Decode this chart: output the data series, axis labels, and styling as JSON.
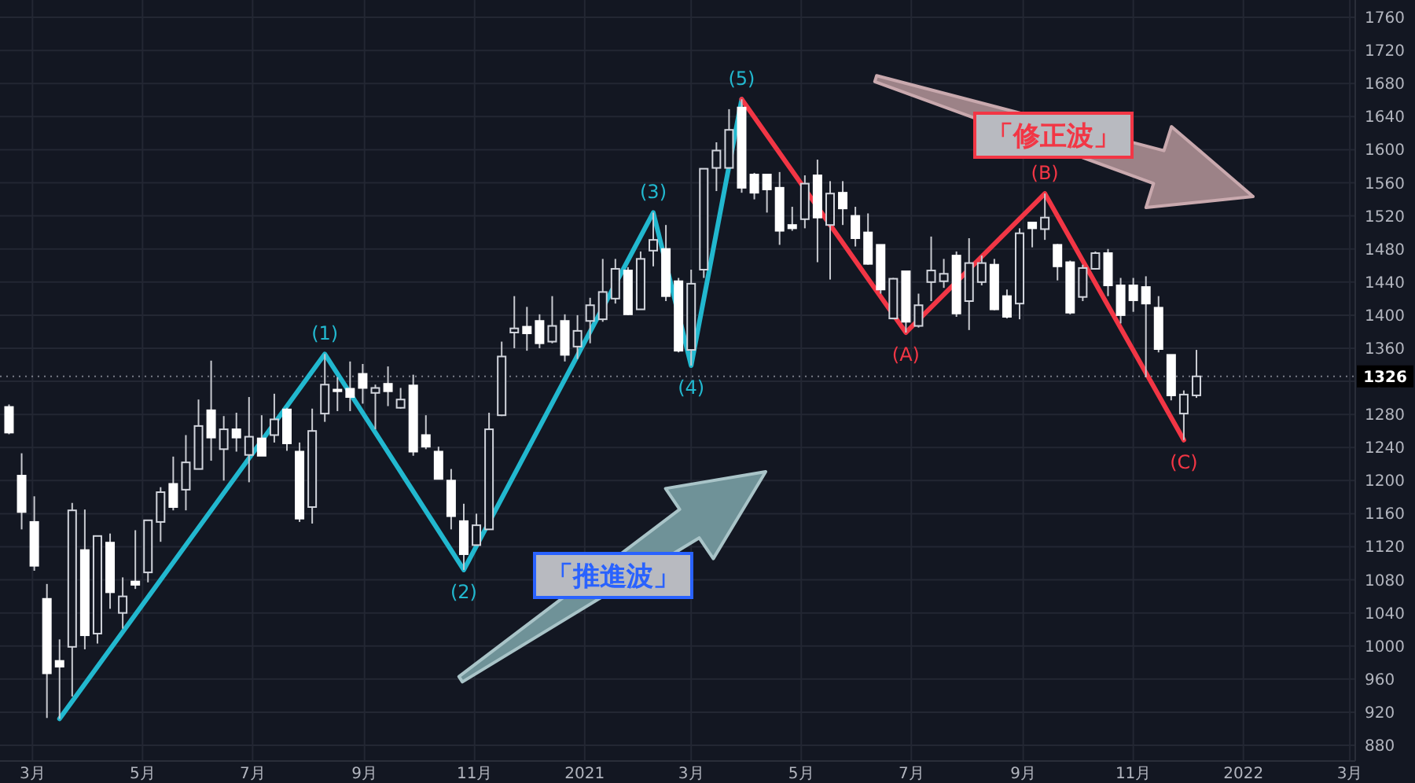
{
  "chart_data": {
    "type": "candlestick",
    "x": [
      "2020-02-17",
      "2020-02-24",
      "2020-03-02",
      "2020-03-09",
      "2020-03-16",
      "2020-03-23",
      "2020-03-30",
      "2020-04-06",
      "2020-04-13",
      "2020-04-20",
      "2020-04-27",
      "2020-05-04",
      "2020-05-11",
      "2020-05-18",
      "2020-05-25",
      "2020-06-01",
      "2020-06-08",
      "2020-06-15",
      "2020-06-22",
      "2020-06-29",
      "2020-07-06",
      "2020-07-13",
      "2020-07-20",
      "2020-07-27",
      "2020-08-03",
      "2020-08-10",
      "2020-08-17",
      "2020-08-24",
      "2020-08-31",
      "2020-09-07",
      "2020-09-14",
      "2020-09-21",
      "2020-09-28",
      "2020-10-05",
      "2020-10-12",
      "2020-10-19",
      "2020-10-26",
      "2020-11-02",
      "2020-11-09",
      "2020-11-16",
      "2020-11-23",
      "2020-11-30",
      "2020-12-07",
      "2020-12-14",
      "2020-12-21",
      "2020-12-28",
      "2021-01-04",
      "2021-01-11",
      "2021-01-18",
      "2021-01-25",
      "2021-02-01",
      "2021-02-08",
      "2021-02-15",
      "2021-02-22",
      "2021-03-01",
      "2021-03-08",
      "2021-03-15",
      "2021-03-22",
      "2021-03-29",
      "2021-04-05",
      "2021-04-12",
      "2021-04-19",
      "2021-04-26",
      "2021-05-03",
      "2021-05-10",
      "2021-05-17",
      "2021-05-24",
      "2021-05-31",
      "2021-06-07",
      "2021-06-14",
      "2021-06-21",
      "2021-06-28",
      "2021-07-05",
      "2021-07-12",
      "2021-07-19",
      "2021-07-26",
      "2021-08-02",
      "2021-08-09",
      "2021-08-16",
      "2021-08-23",
      "2021-08-30",
      "2021-09-06",
      "2021-09-13",
      "2021-09-20",
      "2021-09-27",
      "2021-10-04",
      "2021-10-11",
      "2021-10-18",
      "2021-10-25",
      "2021-11-01",
      "2021-11-08",
      "2021-11-15",
      "2021-11-22",
      "2021-11-29",
      "2021-12-06"
    ],
    "ohlc": [
      [
        1289,
        1292,
        1256,
        1258
      ],
      [
        1206,
        1233,
        1141,
        1162
      ],
      [
        1150,
        1181,
        1091,
        1097
      ],
      [
        1057,
        1075,
        913,
        967
      ],
      [
        982,
        1008,
        912,
        975
      ],
      [
        999,
        1173,
        939,
        1164
      ],
      [
        1116,
        1165,
        996,
        1013
      ],
      [
        1015,
        1133,
        1003,
        1133
      ],
      [
        1125,
        1136,
        1045,
        1065
      ],
      [
        1040,
        1083,
        1021,
        1060
      ],
      [
        1078,
        1140,
        1069,
        1074
      ],
      [
        1089,
        1152,
        1077,
        1152
      ],
      [
        1150,
        1192,
        1126,
        1186
      ],
      [
        1196,
        1229,
        1164,
        1168
      ],
      [
        1189,
        1255,
        1164,
        1222
      ],
      [
        1214,
        1298,
        1214,
        1266
      ],
      [
        1285,
        1345,
        1224,
        1252
      ],
      [
        1238,
        1278,
        1200,
        1262
      ],
      [
        1262,
        1282,
        1235,
        1252
      ],
      [
        1231,
        1301,
        1198,
        1253
      ],
      [
        1251,
        1279,
        1230,
        1230
      ],
      [
        1255,
        1305,
        1246,
        1274
      ],
      [
        1286,
        1288,
        1236,
        1245
      ],
      [
        1235,
        1246,
        1150,
        1154
      ],
      [
        1168,
        1287,
        1148,
        1260
      ],
      [
        1281,
        1353,
        1271,
        1316
      ],
      [
        1310,
        1325,
        1284,
        1308
      ],
      [
        1311,
        1344,
        1284,
        1301
      ],
      [
        1329,
        1341,
        1293,
        1312
      ],
      [
        1306,
        1316,
        1262,
        1312
      ],
      [
        1317,
        1338,
        1290,
        1308
      ],
      [
        1288,
        1312,
        1287,
        1298
      ],
      [
        1315,
        1328,
        1230,
        1235
      ],
      [
        1255,
        1279,
        1238,
        1241
      ],
      [
        1235,
        1241,
        1202,
        1202
      ],
      [
        1200,
        1214,
        1141,
        1157
      ],
      [
        1151,
        1172,
        1092,
        1111
      ],
      [
        1122,
        1160,
        1122,
        1146
      ],
      [
        1141,
        1282,
        1141,
        1262
      ],
      [
        1279,
        1368,
        1278,
        1350
      ],
      [
        1379,
        1423,
        1360,
        1384
      ],
      [
        1386,
        1410,
        1357,
        1378
      ],
      [
        1393,
        1401,
        1360,
        1366
      ],
      [
        1368,
        1423,
        1366,
        1387
      ],
      [
        1393,
        1401,
        1344,
        1352
      ],
      [
        1362,
        1400,
        1347,
        1381
      ],
      [
        1393,
        1421,
        1366,
        1412
      ],
      [
        1395,
        1468,
        1392,
        1428
      ],
      [
        1420,
        1468,
        1414,
        1456
      ],
      [
        1454,
        1458,
        1400,
        1401
      ],
      [
        1407,
        1477,
        1407,
        1468
      ],
      [
        1478,
        1524,
        1459,
        1491
      ],
      [
        1480,
        1509,
        1417,
        1423
      ],
      [
        1441,
        1445,
        1355,
        1357
      ],
      [
        1358,
        1455,
        1339,
        1438
      ],
      [
        1455,
        1577,
        1445,
        1577
      ],
      [
        1578,
        1609,
        1550,
        1599
      ],
      [
        1578,
        1649,
        1578,
        1624
      ],
      [
        1651,
        1661,
        1548,
        1554
      ],
      [
        1570,
        1572,
        1540,
        1548
      ],
      [
        1570,
        1570,
        1524,
        1552
      ],
      [
        1554,
        1573,
        1485,
        1502
      ],
      [
        1509,
        1531,
        1502,
        1505
      ],
      [
        1516,
        1569,
        1505,
        1559
      ],
      [
        1569,
        1588,
        1464,
        1518
      ],
      [
        1509,
        1562,
        1443,
        1547
      ],
      [
        1548,
        1562,
        1509,
        1529
      ],
      [
        1520,
        1531,
        1483,
        1493
      ],
      [
        1500,
        1523,
        1461,
        1462
      ],
      [
        1485,
        1485,
        1426,
        1431
      ],
      [
        1396,
        1445,
        1395,
        1444
      ],
      [
        1453,
        1453,
        1379,
        1392
      ],
      [
        1387,
        1426,
        1385,
        1412
      ],
      [
        1440,
        1495,
        1417,
        1454
      ],
      [
        1441,
        1468,
        1433,
        1450
      ],
      [
        1472,
        1477,
        1398,
        1402
      ],
      [
        1417,
        1493,
        1382,
        1463
      ],
      [
        1440,
        1472,
        1436,
        1463
      ],
      [
        1461,
        1468,
        1406,
        1407
      ],
      [
        1423,
        1431,
        1396,
        1398
      ],
      [
        1414,
        1505,
        1395,
        1499
      ],
      [
        1512,
        1512,
        1482,
        1505
      ],
      [
        1504,
        1547,
        1491,
        1518
      ],
      [
        1485,
        1486,
        1442,
        1459
      ],
      [
        1464,
        1466,
        1401,
        1403
      ],
      [
        1422,
        1461,
        1417,
        1457
      ],
      [
        1456,
        1477,
        1455,
        1475
      ],
      [
        1475,
        1480,
        1423,
        1436
      ],
      [
        1436,
        1445,
        1390,
        1400
      ],
      [
        1436,
        1445,
        1404,
        1418
      ],
      [
        1434,
        1447,
        1325,
        1414
      ],
      [
        1409,
        1423,
        1355,
        1359
      ],
      [
        1352,
        1352,
        1297,
        1303
      ],
      [
        1281,
        1309,
        1249,
        1304
      ],
      [
        1303,
        1358,
        1300,
        1326
      ]
    ],
    "series": [
      {
        "type": "line",
        "color": "#22b8cf",
        "x": [
          "2020-03-16",
          "2020-08-10",
          "2020-10-26",
          "2021-02-08",
          "2021-03-01",
          "2021-03-29"
        ],
        "values": [
          912,
          1353,
          1092,
          1524,
          1339,
          1661
        ]
      },
      {
        "type": "line",
        "color": "#f23645",
        "x": [
          "2021-03-29",
          "2021-06-28",
          "2021-09-13",
          "2021-11-29"
        ],
        "values": [
          1661,
          1379,
          1547,
          1249
        ]
      }
    ],
    "xlim": [
      "2020-02-12",
      "2022-03-04"
    ],
    "ylim": [
      861,
      1781
    ],
    "xticks": [
      {
        "value": "2020-03-01",
        "label": "3月"
      },
      {
        "value": "2020-05-01",
        "label": "5月"
      },
      {
        "value": "2020-07-01",
        "label": "7月"
      },
      {
        "value": "2020-09-01",
        "label": "9月"
      },
      {
        "value": "2020-11-01",
        "label": "11月"
      },
      {
        "value": "2021-01-01",
        "label": "2021"
      },
      {
        "value": "2021-03-01",
        "label": "3月"
      },
      {
        "value": "2021-05-01",
        "label": "5月"
      },
      {
        "value": "2021-07-01",
        "label": "7月"
      },
      {
        "value": "2021-09-01",
        "label": "9月"
      },
      {
        "value": "2021-11-01",
        "label": "11月"
      },
      {
        "value": "2022-01-01",
        "label": "2022"
      },
      {
        "value": "2022-03-01",
        "label": "3月"
      }
    ],
    "yticks": [
      880,
      920,
      960,
      1000,
      1040,
      1080,
      1120,
      1160,
      1200,
      1240,
      1280,
      1320,
      1360,
      1400,
      1440,
      1480,
      1520,
      1560,
      1600,
      1640,
      1680,
      1720,
      1760
    ],
    "grid": true,
    "ref_lines": [
      {
        "axis": "y",
        "value": 1326,
        "label": "1326",
        "line_style": "dotted"
      }
    ],
    "annotations": [
      "「推進波」",
      "「修正波」",
      {
        "text": "(1)",
        "x": "2020-08-10",
        "y": 1353
      },
      {
        "text": "(2)",
        "x": "2020-10-26",
        "y": 1092
      },
      {
        "text": "(3)",
        "x": "2021-02-08",
        "y": 1524
      },
      {
        "text": "(4)",
        "x": "2021-03-01",
        "y": 1339
      },
      {
        "text": "(5)",
        "x": "2021-03-29",
        "y": 1661
      },
      {
        "text": "(A)",
        "x": "2021-06-28",
        "y": 1379
      },
      {
        "text": "(B)",
        "x": "2021-09-13",
        "y": 1547
      },
      {
        "text": "(C)",
        "x": "2021-11-29",
        "y": 1249
      }
    ]
  }
}
